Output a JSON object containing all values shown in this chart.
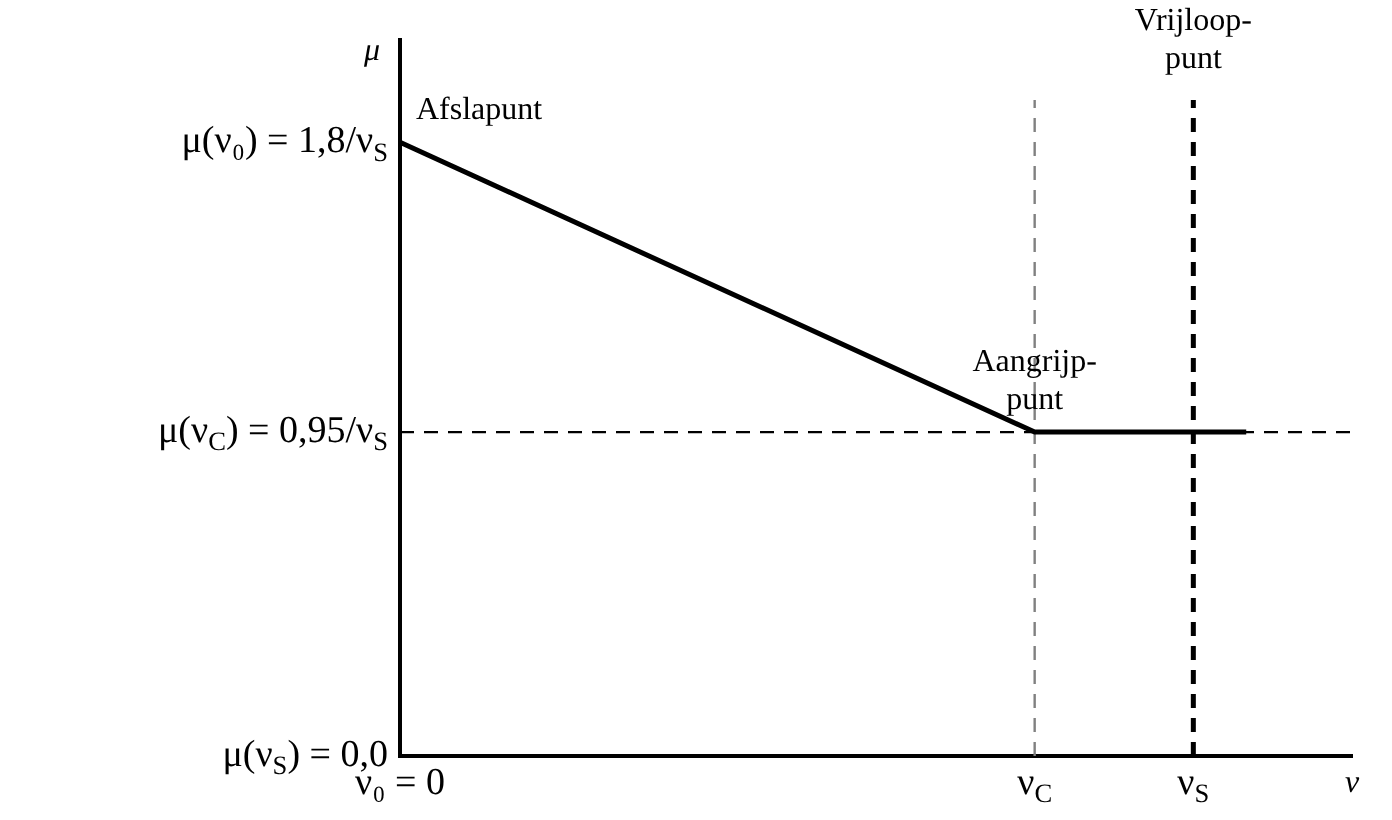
{
  "chart_data": {
    "type": "line",
    "xlabel": "ν",
    "ylabel": "μ",
    "categories": [
      "ν₀ = 0",
      null,
      null,
      null,
      null,
      null,
      null,
      null,
      null,
      null,
      null,
      null,
      "ν$_{C}$",
      null,
      null,
      "ν$_{S}$",
      null,
      null,
      null
    ],
    "values": [
      1.8,
      null,
      null,
      null,
      null,
      null,
      null,
      null,
      null,
      null,
      null,
      null,
      0.95,
      null,
      null,
      null,
      0.95,
      null,
      null
    ],
    "color": "#000000",
    "ylim": [
      0,
      2.1
    ],
    "yticks": [
      {
        "value": 0,
        "label": "μ(ν$_{S}$) = 0,0"
      },
      {
        "value": 0.95,
        "label": "μ(ν$_{C}$) = 0,95/ν$_{S}$"
      },
      {
        "value": 1.8,
        "label": "μ(ν₀) = 1,8/ν$_{S}$"
      }
    ],
    "ref_lines": [
      {
        "axis": "y",
        "value": 0.95,
        "color": "#000000",
        "line_style": "dashed"
      },
      {
        "axis": "x",
        "value": "ν$_{C}$",
        "color": "#808080",
        "line_style": "dashed"
      },
      {
        "axis": "x",
        "value": "ν$_{S}$",
        "color": "#000000",
        "line_style": "dashed"
      }
    ],
    "annotations": [
      {
        "text": "Afslapunt",
        "x": "ν₀ = 0",
        "y": 1.8
      },
      {
        "text": "Aangrijp-\npunt",
        "x": "ν$_{C}$",
        "y": 0.95
      },
      {
        "text": "Vrijloop-\npunt",
        "x": "ν$_{S}$",
        "y": 1.95
      }
    ],
    "grid": false,
    "legend": false,
    "marker": "none",
    "line_style": "solid"
  }
}
